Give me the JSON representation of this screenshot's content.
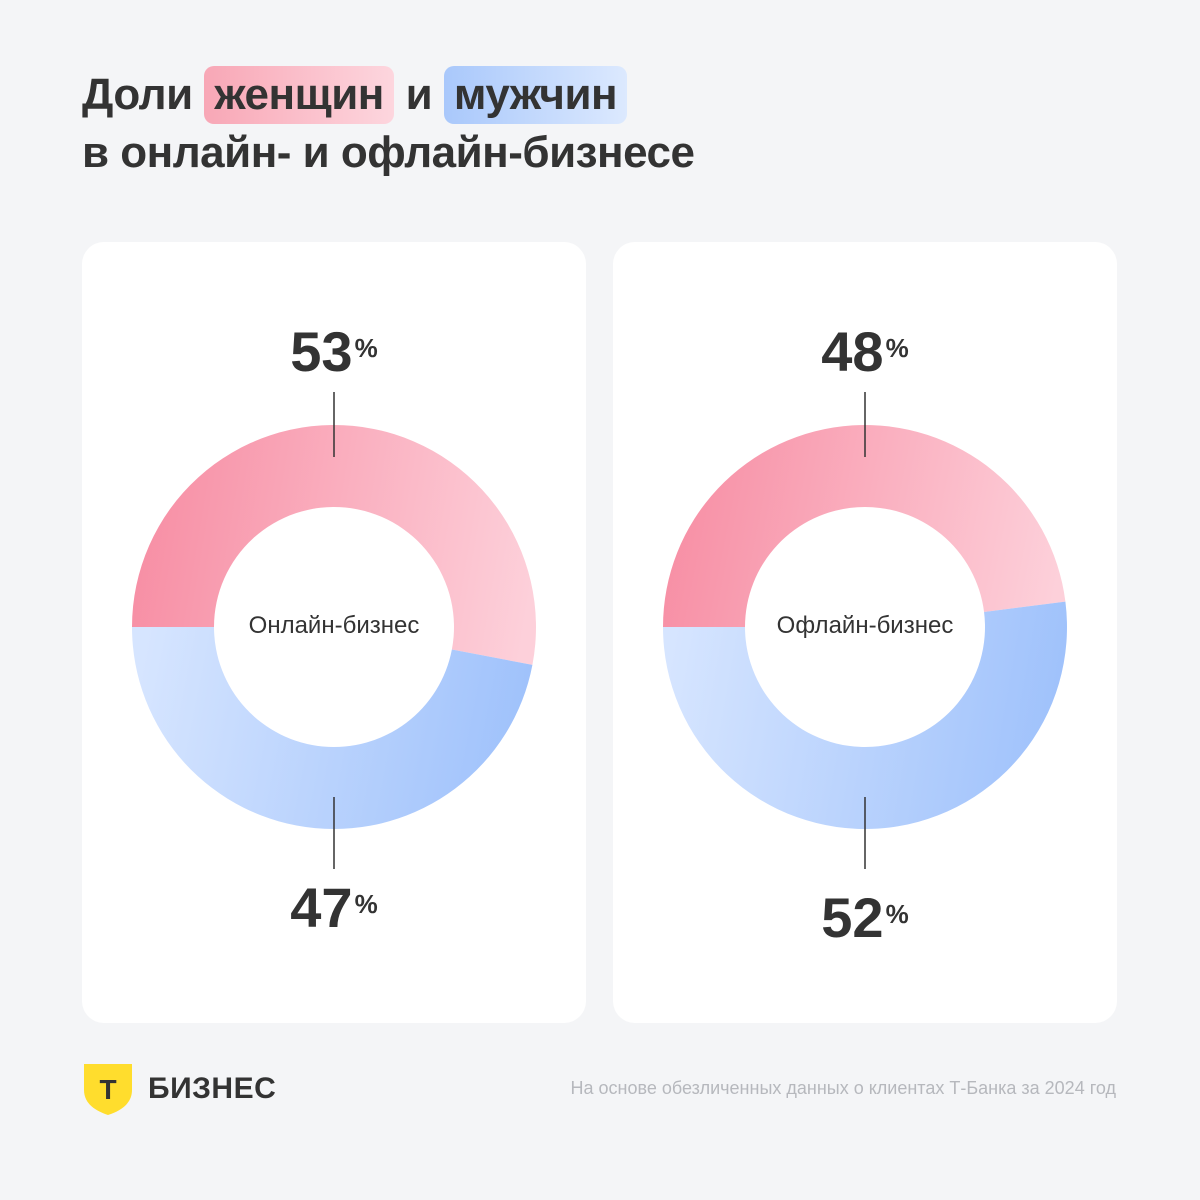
{
  "title": {
    "part1": "Доли",
    "highlight_women": "женщин",
    "part2": "и",
    "highlight_men": "мужчин",
    "line2": "в онлайн- и офлайн-бизнесе"
  },
  "colors": {
    "women_start": "#f78ea4",
    "women_end": "#fdd0da",
    "men_start": "#d6e5ff",
    "men_end": "#9ec1fb"
  },
  "chart_data": [
    {
      "type": "pie",
      "center_label": "Онлайн-бизнес",
      "categories": [
        "женщин",
        "мужчин"
      ],
      "values": [
        53,
        47
      ],
      "labels": {
        "women": "53",
        "men": "47",
        "unit": "%"
      }
    },
    {
      "type": "pie",
      "center_label": "Офлайн-бизнес",
      "categories": [
        "женщин",
        "мужчин"
      ],
      "values": [
        48,
        52
      ],
      "labels": {
        "women": "48",
        "men": "52",
        "unit": "%"
      }
    }
  ],
  "logo": {
    "mark": "Т",
    "text": "БИЗНЕС"
  },
  "footnote": "На основе обезличенных данных о клиентах Т-Банка за 2024 год"
}
